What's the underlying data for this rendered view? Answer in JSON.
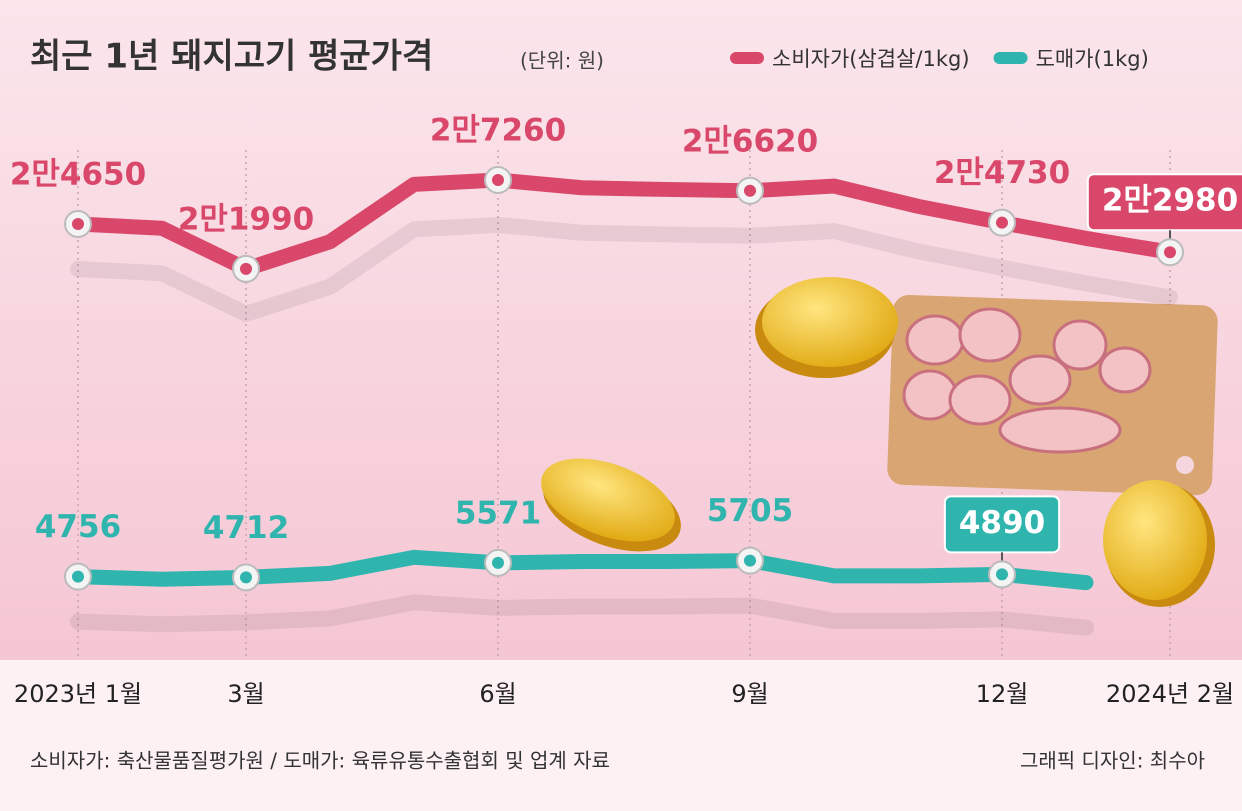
{
  "chart_data": {
    "type": "line",
    "title": "최근 1년 돼지고기 평균가격",
    "subtitle": "(단위: 원)",
    "categories": [
      "2023년 1월",
      null,
      "3월",
      null,
      null,
      "6월",
      null,
      null,
      "9월",
      null,
      null,
      "12월",
      null,
      "2024년 2월"
    ],
    "series": [
      {
        "name": "소비자가(삼겹살/1kg)",
        "color": "#d9476a",
        "values": [
          24650,
          24400,
          21990,
          23600,
          27000,
          27260,
          26800,
          26700,
          26620,
          26900,
          25700,
          24730,
          23800,
          22980
        ],
        "value_labels": [
          "2만4650",
          null,
          "2만1990",
          null,
          null,
          "2만7260",
          null,
          null,
          "2만6620",
          null,
          null,
          "2만4730",
          null,
          "2만2980"
        ]
      },
      {
        "name": "도매가(1kg)",
        "color": "#2fb5ae",
        "axis": "y2",
        "values": [
          4756,
          4600,
          4712,
          4950,
          5900,
          5571,
          5650,
          5650,
          5705,
          4800,
          4800,
          4890,
          4400,
          null
        ]
      }
    ],
    "ylim": [
      0,
      32000
    ],
    "y2lim": [
      1000,
      33000
    ],
    "source": "소비자가: 축산물품질평가원 / 도매가: 육류유통수출협회 및 업계 자료",
    "credit": "그래픽 디자인: 최수아"
  }
}
